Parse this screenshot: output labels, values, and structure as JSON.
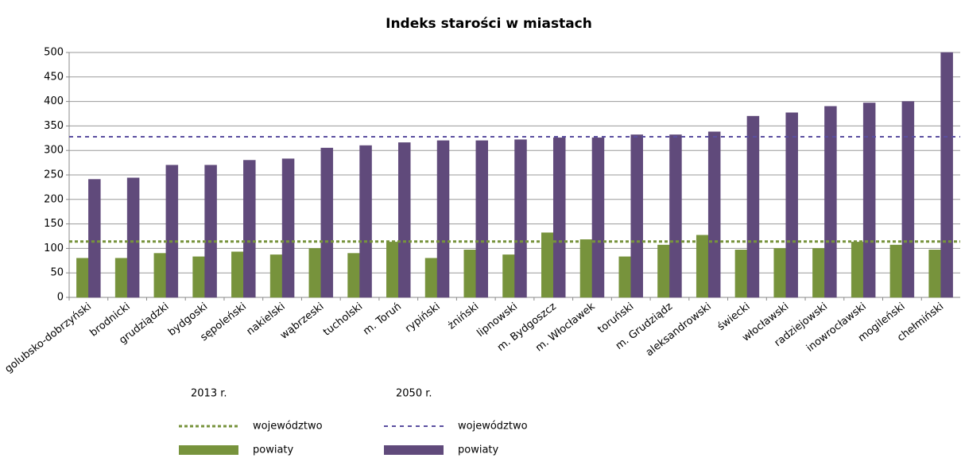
{
  "chart_data": {
    "type": "bar",
    "title": "Indeks starości w miastach",
    "categories": [
      "golubsko-dobrzyński",
      "brodnicki",
      "grudziądzki",
      "bydgoski",
      "sępoleński",
      "nakielski",
      "wąbrzeski",
      "tucholski",
      "m. Toruń",
      "rypiński",
      "żniński",
      "lipnowski",
      "m. Bydgoszcz",
      "m. Włocławek",
      "toruński",
      "m. Grudziądz",
      "aleksandrowski",
      "świecki",
      "włocławski",
      "radziejowski",
      "inowrocławski",
      "mogileński",
      "chełmiński"
    ],
    "series": [
      {
        "name": "powiaty",
        "period": "2013 r.",
        "color": "#77933c",
        "values": [
          80,
          80,
          90,
          83,
          93,
          87,
          100,
          90,
          113,
          80,
          97,
          87,
          132,
          118,
          83,
          107,
          127,
          97,
          100,
          100,
          113,
          107,
          97
        ],
        "reference": {
          "name": "województwo",
          "value": 114,
          "color": "#77933c"
        }
      },
      {
        "name": "powiaty",
        "period": "2050 r.",
        "color": "#604a7b",
        "values": [
          241,
          244,
          270,
          270,
          280,
          283,
          305,
          310,
          316,
          320,
          320,
          322,
          326,
          326,
          332,
          332,
          338,
          370,
          377,
          390,
          397,
          400,
          500
        ],
        "reference": {
          "name": "województwo",
          "value": 328,
          "color": "#5b4fa0"
        }
      }
    ],
    "ylim": [
      0,
      500
    ],
    "yticks": [
      0,
      50,
      100,
      150,
      200,
      250,
      300,
      350,
      400,
      450,
      500
    ],
    "grid": true
  }
}
